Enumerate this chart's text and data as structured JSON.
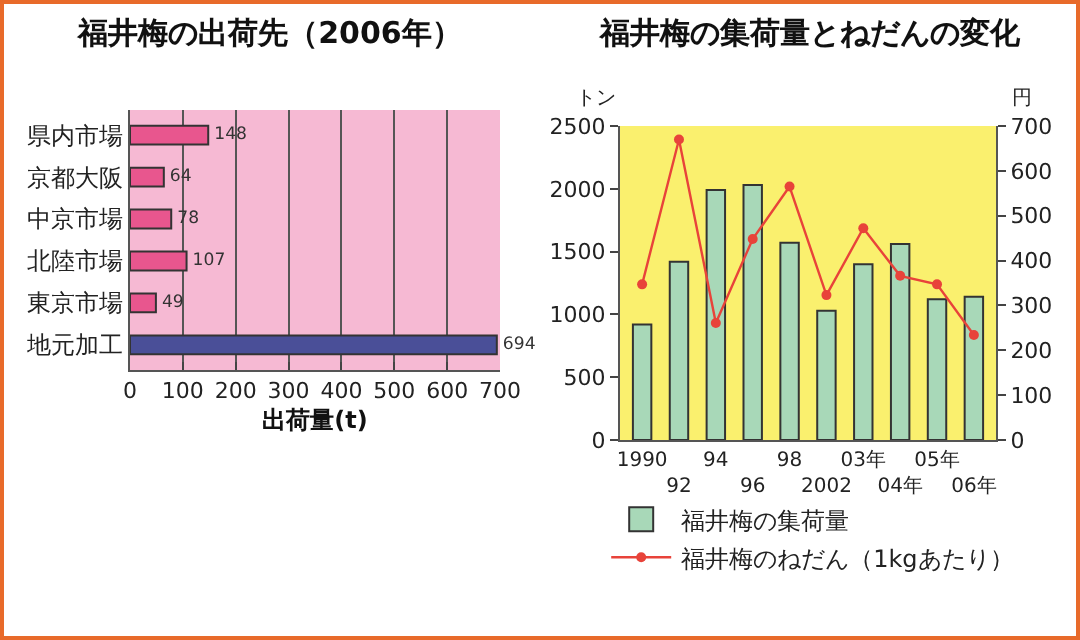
{
  "chart_data": [
    {
      "type": "bar",
      "title": "福井梅の出荷先（2006年）",
      "xlabel": "出荷量(t)",
      "orientation": "horizontal",
      "categories": [
        "県内市場",
        "京都大阪",
        "中京市場",
        "北陸市場",
        "東京市場",
        "地元加工"
      ],
      "values": [
        148,
        64,
        78,
        107,
        49,
        694
      ],
      "colors": [
        "#e8568e",
        "#e8568e",
        "#e8568e",
        "#e8568e",
        "#e8568e",
        "#4a4f98"
      ],
      "xlim": [
        0,
        700
      ],
      "xticks": [
        0,
        100,
        200,
        300,
        400,
        500,
        600,
        700
      ],
      "grid": "x",
      "data_labels": true,
      "legend": false
    },
    {
      "type": "bar",
      "title": "福井梅の集荷量とねだんの変化",
      "ylabel": "トン",
      "y2label": "円",
      "categories": [
        "1990",
        "92",
        "94",
        "96",
        "98",
        "2002",
        "03年",
        "04年",
        "05年",
        "06年"
      ],
      "series": [
        {
          "name": "福井梅の集荷量",
          "color": "#a8d8b8",
          "values": [
            920,
            1420,
            1990,
            2030,
            1570,
            1030,
            1400,
            1560,
            1120,
            1140
          ]
        },
        {
          "name": "福井梅のねだん（1kgあたり）",
          "type": "line",
          "axis": "y2",
          "color": "#e8433a",
          "values": [
            347,
            670,
            261,
            448,
            565,
            323,
            472,
            366,
            347,
            234
          ]
        }
      ],
      "ylim": [
        0,
        2500
      ],
      "yticks": [
        0,
        500,
        1000,
        1500,
        2000,
        2500
      ],
      "y2lim": [
        0,
        700
      ],
      "y2ticks": [
        0,
        100,
        200,
        300,
        400,
        500,
        600,
        700
      ],
      "marker": "circle",
      "line_style": "solid",
      "grid": false,
      "legend": "bottom"
    }
  ]
}
